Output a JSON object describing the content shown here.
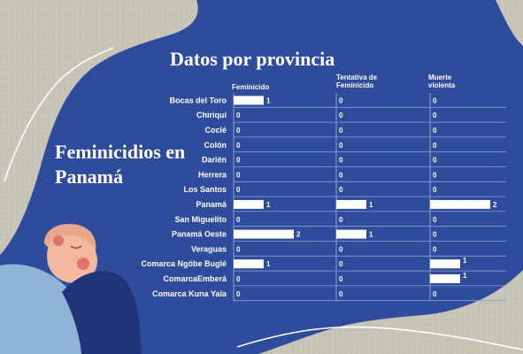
{
  "header": {
    "title": "Datos por provincia",
    "side_title": "Feminicidios en Panamá"
  },
  "colors": {
    "background": "#2f4b9c",
    "paper": "#c9c6bb",
    "bar": "#ffffff",
    "gridline": "#8ea0d2",
    "skin": "#f2b9a0",
    "cheek": "#e2746c",
    "hair": "#e9a78c",
    "shirt_dark": "#1f3577",
    "shirt_light": "#8fb4d6"
  },
  "chart_data": {
    "type": "bar",
    "orientation": "horizontal",
    "title": "Datos por provincia",
    "categories": [
      "Bocas del Toro",
      "Chiriquí",
      "Coclé",
      "Colón",
      "Darién",
      "Herrera",
      "Los Santos",
      "Panamá",
      "San Miguelito",
      "Panamá Oeste",
      "Veraguas",
      "Comarca Ngöbe Buglé",
      "ComarcaEmberá",
      "Comarca Kuna Yala"
    ],
    "series": [
      {
        "name": "Feminicido",
        "values": [
          1,
          0,
          0,
          0,
          0,
          0,
          0,
          1,
          0,
          2,
          0,
          1,
          0,
          0
        ]
      },
      {
        "name": "Tentativa de Feminicido",
        "values": [
          0,
          0,
          0,
          0,
          0,
          0,
          0,
          1,
          0,
          1,
          0,
          0,
          0,
          0
        ]
      },
      {
        "name": "Muerte violenta",
        "values": [
          0,
          0,
          0,
          0,
          0,
          0,
          0,
          2,
          0,
          0,
          0,
          1,
          1,
          0
        ]
      }
    ],
    "xlim": [
      0,
      2
    ],
    "grid": false,
    "legend": "none"
  }
}
